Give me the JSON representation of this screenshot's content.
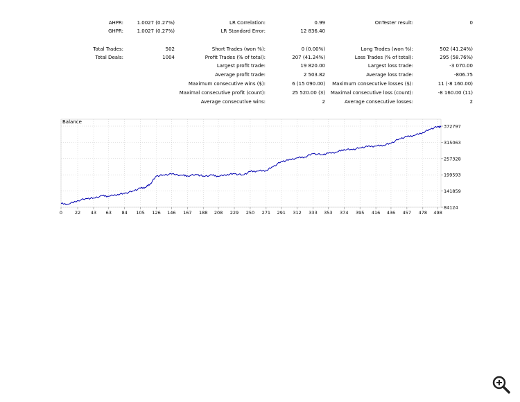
{
  "stats": {
    "ahpr_label": "AHPR:",
    "ahpr_value": "1.0027 (0.27%)",
    "ghpr_label": "GHPR:",
    "ghpr_value": "1.0027 (0.27%)",
    "lr_corr_label": "LR Correlation:",
    "lr_corr_value": "0.99",
    "lr_err_label": "LR Standard Error:",
    "lr_err_value": "12 836.40",
    "ontester_label": "OnTester result:",
    "ontester_value": "0",
    "total_trades_label": "Total Trades:",
    "total_trades_value": "502",
    "total_deals_label": "Total Deals:",
    "total_deals_value": "1004",
    "short_trades_label": "Short Trades (won %):",
    "short_trades_value": "0 (0.00%)",
    "profit_trades_label": "Profit Trades (% of total):",
    "profit_trades_value": "207 (41.24%)",
    "largest_profit_label": "Largest profit trade:",
    "largest_profit_value": "19 820.00",
    "avg_profit_label": "Average profit trade:",
    "avg_profit_value": "2 503.82",
    "max_consec_wins_label": "Maximum consecutive wins ($):",
    "max_consec_wins_value": "6 (15 090.00)",
    "max_consec_profit_label": "Maximal consecutive profit (count):",
    "max_consec_profit_value": "25 520.00 (3)",
    "avg_consec_wins_label": "Average consecutive wins:",
    "avg_consec_wins_value": "2",
    "long_trades_label": "Long Trades (won %):",
    "long_trades_value": "502 (41.24%)",
    "loss_trades_label": "Loss Trades (% of total):",
    "loss_trades_value": "295 (58.76%)",
    "largest_loss_label": "Largest loss trade:",
    "largest_loss_value": "-3 070.00",
    "avg_loss_label": "Average loss trade:",
    "avg_loss_value": "-806.75",
    "max_consec_losses_label": "Maximum consecutive losses ($):",
    "max_consec_losses_value": "11 (-8 160.00)",
    "max_consec_loss_label": "Maximal consecutive loss (count):",
    "max_consec_loss_value": "-8 160.00 (11)",
    "avg_consec_losses_label": "Average consecutive losses:",
    "avg_consec_losses_value": "2"
  },
  "chart_data": {
    "type": "line",
    "title": "Balance",
    "xlabel": "",
    "ylabel": "",
    "x_ticks": [
      "0",
      "22",
      "43",
      "63",
      "84",
      "105",
      "126",
      "146",
      "167",
      "188",
      "208",
      "229",
      "250",
      "271",
      "291",
      "312",
      "333",
      "353",
      "374",
      "395",
      "416",
      "436",
      "457",
      "478",
      "498"
    ],
    "y_ticks": [
      "84124",
      "141859",
      "199593",
      "257328",
      "315063",
      "372797"
    ],
    "xlim": [
      0,
      502
    ],
    "ylim": [
      84124,
      372797
    ],
    "grid": true,
    "line_color": "#0000b0",
    "series": [
      {
        "x": [
          0,
          10,
          22,
          35,
          43,
          55,
          63,
          75,
          84,
          95,
          105,
          112,
          118,
          126,
          135,
          146,
          160,
          167,
          180,
          188,
          200,
          208,
          220,
          229,
          240,
          250,
          260,
          271,
          280,
          291,
          300,
          312,
          322,
          333,
          345,
          353,
          365,
          374,
          385,
          395,
          405,
          416,
          426,
          436,
          447,
          457,
          467,
          478,
          488,
          498,
          502
        ],
        "y": [
          97000,
          95000,
          108000,
          115000,
          117000,
          125000,
          123000,
          130000,
          133000,
          142000,
          152000,
          155000,
          168000,
          195000,
          199000,
          202000,
          198000,
          196000,
          200000,
          195000,
          198000,
          194000,
          201000,
          203000,
          199000,
          211000,
          213000,
          215000,
          228000,
          247000,
          251000,
          260000,
          263000,
          275000,
          271000,
          276000,
          281000,
          290000,
          289000,
          296000,
          300000,
          302000,
          305000,
          312000,
          328000,
          335000,
          340000,
          350000,
          362000,
          372000,
          369000
        ]
      }
    ]
  },
  "zoom_icon": "zoom-in-icon"
}
